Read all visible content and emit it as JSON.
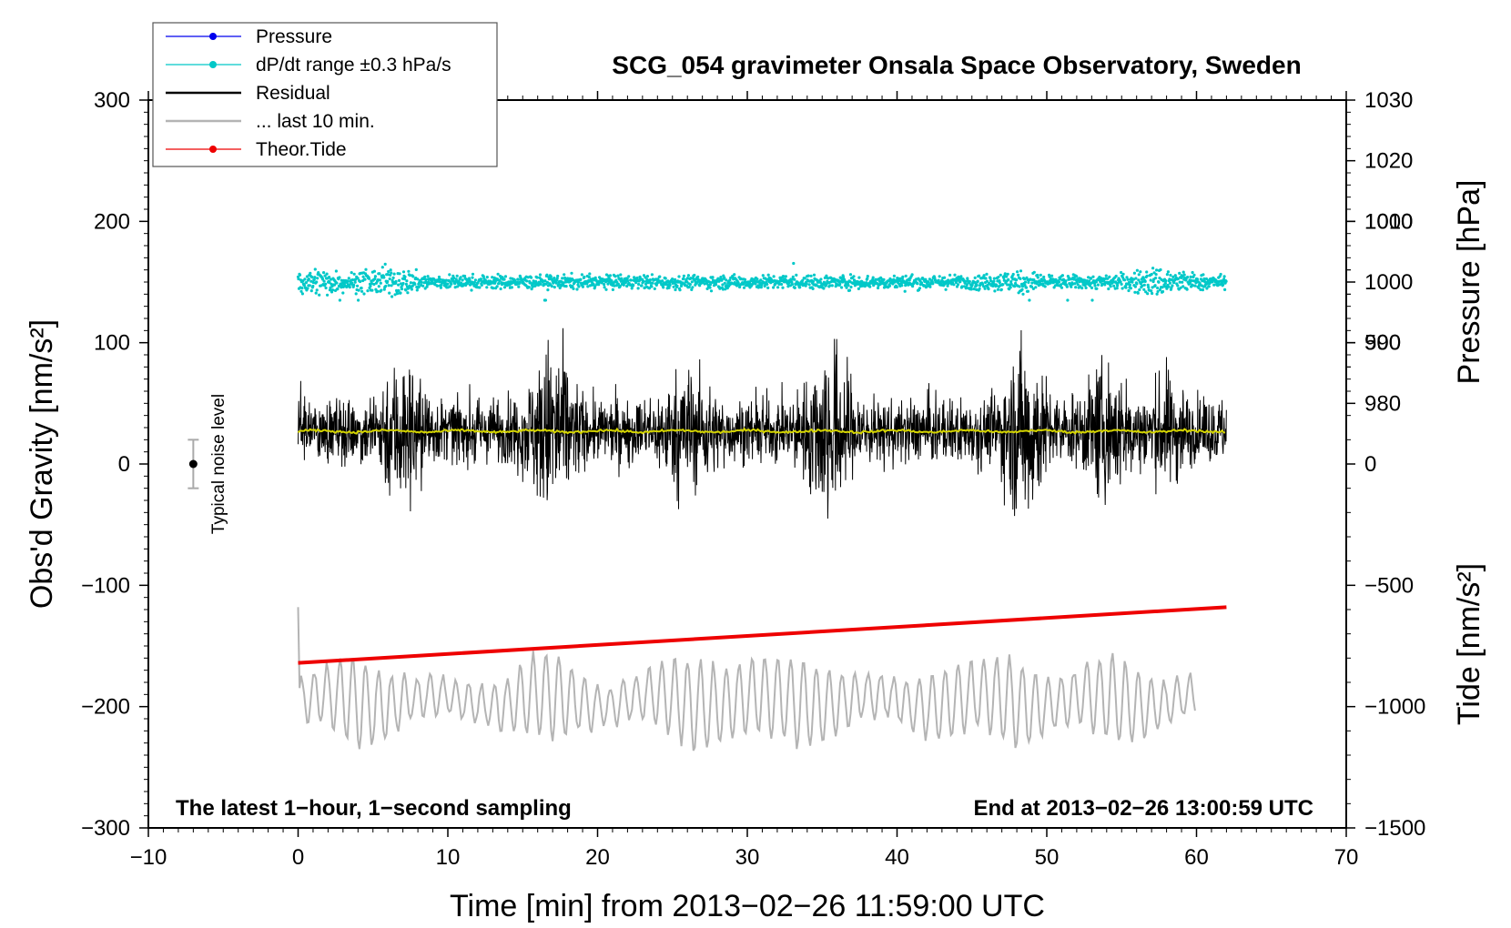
{
  "chart_data": {
    "type": "line",
    "title": "SCG_054 gravimeter Onsala Space Observatory, Sweden",
    "xlabel": "Time [min] from 2013−02−26 11:59:00 UTC",
    "ylabel": "Obs'd Gravity [nm/s²]",
    "xlim": [
      -10,
      70
    ],
    "ylim": [
      -300,
      300
    ],
    "x_ticks": [
      -10,
      0,
      10,
      20,
      30,
      40,
      50,
      60,
      70
    ],
    "x_tick_labels": [
      "−10",
      "0",
      "10",
      "20",
      "30",
      "40",
      "50",
      "60",
      "70"
    ],
    "y_ticks": [
      -300,
      -200,
      -100,
      0,
      100,
      200,
      300
    ],
    "y_tick_labels": [
      "−300",
      "−200",
      "−100",
      "0",
      "100",
      "200",
      "300"
    ],
    "right_axes": [
      {
        "name": "pressure",
        "label": "Pressure [hPa]",
        "ticks": [
          980,
          990,
          1000,
          1010,
          1020,
          1030
        ],
        "tick_labels": [
          "980",
          "990",
          "1000",
          "1010",
          "1020",
          "1030"
        ],
        "gravity_anchor": {
          "value_at_top": 1030,
          "gravity_per_unit": 5,
          "gravity_at_top": 300
        }
      },
      {
        "name": "tide",
        "label": "Tide [nm/s²]",
        "ticks": [
          -1500,
          -1000,
          -500,
          0,
          500,
          1000
        ],
        "tick_labels": [
          "−1500",
          "−1000",
          "−500",
          "0",
          "500",
          "1000"
        ],
        "gravity_anchor": {
          "value_at_bottom": -1500,
          "gravity_per_unit": 0.2,
          "gravity_at_bottom": -300
        }
      }
    ],
    "series": [
      {
        "name": "Pressure",
        "color": "#0000ee",
        "style": "line-dot",
        "in_legend": true
      },
      {
        "name": "dP/dt range ±0.3 hPa/s",
        "color": "#00c8c8",
        "style": "points",
        "x_range": [
          0,
          62
        ],
        "center_hpa": 1000.0,
        "spread_hpa": [
          -3.0,
          3.5
        ],
        "in_legend": true
      },
      {
        "name": "Residual",
        "color": "#000000",
        "style": "line",
        "x_range": [
          0,
          62
        ],
        "center": 27,
        "min": -63,
        "max": 112,
        "bursts_min": [
          [
            7,
            70
          ],
          [
            17,
            90
          ],
          [
            26,
            50
          ],
          [
            35.5,
            90
          ],
          [
            48.5,
            85
          ],
          [
            54,
            60
          ],
          [
            58,
            40
          ]
        ],
        "in_legend": true
      },
      {
        "name": "... last 10 min.",
        "color": "#b4b4b4",
        "style": "line",
        "x_range": [
          0,
          62
        ],
        "center": 27,
        "in_legend": true
      },
      {
        "name": "Residual smoothed",
        "color": "#d4d400",
        "style": "line",
        "x_range": [
          0,
          62
        ],
        "value": 27,
        "in_legend": false
      },
      {
        "name": "Theor.Tide",
        "color": "#ee0000",
        "style": "line-dot",
        "x": [
          0,
          62
        ],
        "values_nms2": [
          -820,
          -590
        ],
        "in_legend": true
      },
      {
        "name": "Observed gravity (long-period oscillation)",
        "color": "#b4b4b4",
        "style": "line",
        "x_range": [
          0,
          60
        ],
        "center": -195,
        "min": -250,
        "max": -117,
        "in_legend": false
      }
    ],
    "noise_marker": {
      "label": "Typical noise level",
      "x": -7,
      "y": 0,
      "error": 20
    },
    "annotations": {
      "bottom_left": "The latest 1−hour, 1−second sampling",
      "bottom_right": "End at 2013−02−26 13:00:59 UTC"
    },
    "legend_position": "top-left",
    "grid": false
  }
}
